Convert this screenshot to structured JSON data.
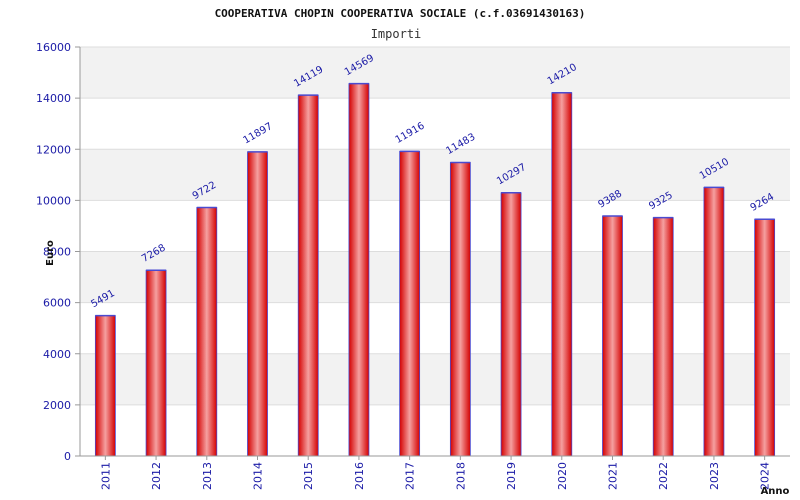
{
  "chart_data": {
    "type": "bar",
    "title": "COOPERATIVA CHOPIN COOPERATIVA SOCIALE (c.f.03691430163)",
    "subtitle": "Importi",
    "xlabel": "Anno",
    "ylabel": "Euro",
    "categories": [
      "2011",
      "2012",
      "2013",
      "2014",
      "2015",
      "2016",
      "2017",
      "2018",
      "2019",
      "2020",
      "2021",
      "2022",
      "2023",
      "2024"
    ],
    "values": [
      5491,
      7268,
      9722,
      11897,
      14119,
      14569,
      11916,
      11483,
      10297,
      14210,
      9388,
      9325,
      10510,
      9264
    ],
    "value_labels": [
      "5491",
      "7268",
      "9722",
      "11897",
      "14119",
      "14569",
      "11916",
      "11483",
      "10297",
      "14210",
      "9388",
      "9325",
      "10510",
      "9264"
    ],
    "ylim": [
      0,
      16000
    ],
    "yticks": [
      "0",
      "2000",
      "4000",
      "6000",
      "8000",
      "10000",
      "12000",
      "14000",
      "16000"
    ],
    "grid": true,
    "colors": {
      "bar_edge": "#d40000",
      "bar_mid": "#f5a0a0",
      "bar_outline": "#4a4ad0",
      "band_light": "#f2f2f2",
      "band_white": "#ffffff",
      "axis": "#999999",
      "tick_text": "#1a1aa6"
    }
  }
}
